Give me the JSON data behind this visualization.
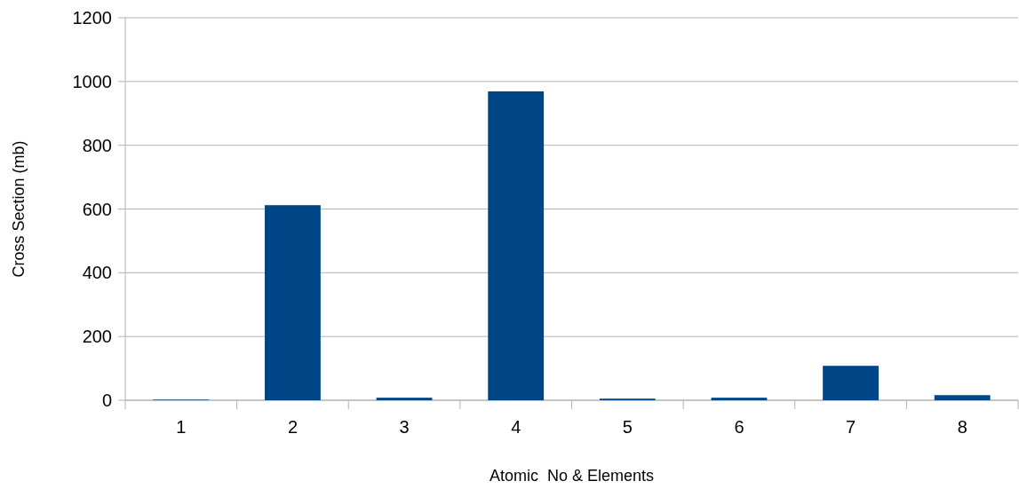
{
  "chart_data": {
    "type": "bar",
    "xlabel": "Atomic  No & Elements",
    "ylabel": "Cross Section (mb)",
    "categories": [
      "1",
      "2",
      "3",
      "4",
      "5",
      "6",
      "7",
      "8"
    ],
    "values": [
      2,
      612,
      8,
      969,
      5,
      8,
      108,
      16
    ],
    "color": "#004586",
    "ylim": [
      0,
      1200
    ],
    "yticks": [
      0,
      200,
      400,
      600,
      800,
      1000,
      1200
    ],
    "grid": "y"
  }
}
